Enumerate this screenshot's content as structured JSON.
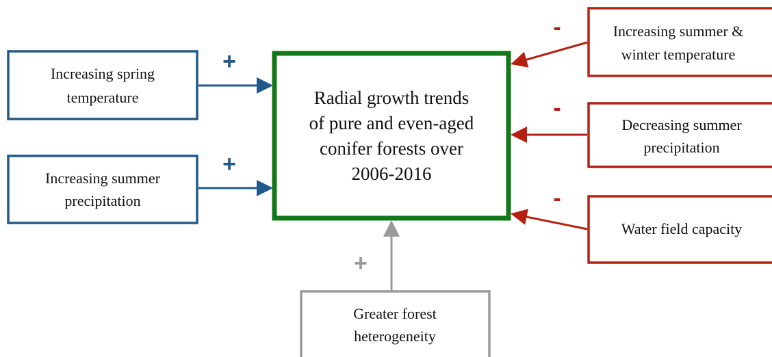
{
  "nodes": [
    {
      "lines": [
        "Radial growth trends",
        "of pure and even-aged",
        "conifer forests over",
        "2006-2016"
      ]
    },
    {
      "lines": [
        "Increasing spring",
        "temperature"
      ]
    },
    {
      "lines": [
        "Increasing summer",
        "precipitation"
      ]
    },
    {
      "lines": [
        "Increasing summer &",
        "winter temperature"
      ]
    },
    {
      "lines": [
        "Decreasing summer",
        "precipitation"
      ]
    },
    {
      "lines": [
        "Water field capacity"
      ]
    },
    {
      "lines": [
        "Greater forest",
        "heterogeneity"
      ]
    }
  ],
  "edges": [
    {
      "sign": "+"
    },
    {
      "sign": "+"
    },
    {
      "sign": "-"
    },
    {
      "sign": "-"
    },
    {
      "sign": "-"
    },
    {
      "sign": "+"
    }
  ]
}
